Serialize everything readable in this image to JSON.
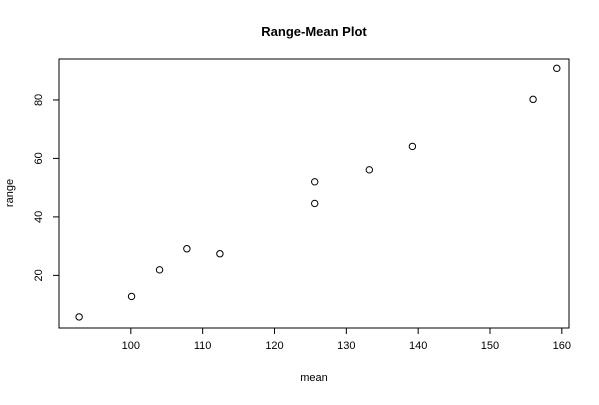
{
  "chart_data": {
    "type": "scatter",
    "title": "Range-Mean Plot",
    "xlabel": "mean",
    "ylabel": "range",
    "xlim": [
      90,
      161
    ],
    "ylim": [
      2,
      94
    ],
    "xticks": [
      100,
      110,
      120,
      130,
      140,
      150,
      160
    ],
    "yticks": [
      20,
      40,
      60,
      80
    ],
    "grid": false,
    "marker": "open-circle",
    "series": [
      {
        "points": [
          {
            "x": 92.8,
            "y": 5.8
          },
          {
            "x": 100.1,
            "y": 12.8
          },
          {
            "x": 104.0,
            "y": 21.9
          },
          {
            "x": 107.8,
            "y": 29.1
          },
          {
            "x": 112.4,
            "y": 27.4
          },
          {
            "x": 125.6,
            "y": 52.0
          },
          {
            "x": 125.6,
            "y": 44.6
          },
          {
            "x": 133.2,
            "y": 56.1
          },
          {
            "x": 139.2,
            "y": 64.1
          },
          {
            "x": 156.0,
            "y": 80.2
          },
          {
            "x": 159.3,
            "y": 90.8
          }
        ]
      }
    ]
  }
}
